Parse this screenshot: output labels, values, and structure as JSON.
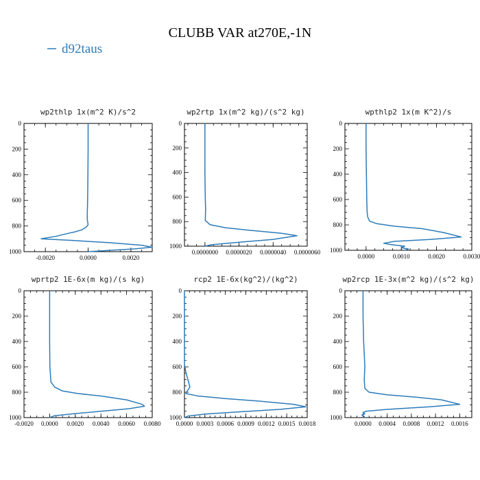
{
  "figure": {
    "title": "CLUBB VAR at270E,-1N",
    "legend": {
      "label": "d92taus",
      "color": "#2b7bb9"
    },
    "line_color": "#2b7bb9"
  },
  "chart_data": [
    {
      "type": "line",
      "title": "wp2thlp  1x(m^2 K)/s^2",
      "xlim": [
        -0.003,
        0.003
      ],
      "ylim": [
        1000,
        0
      ],
      "xticks": [
        -0.002,
        0.0,
        0.002
      ],
      "xtick_labels": [
        "-0.0020",
        "0.0000",
        "0.0020"
      ],
      "yticks": [
        0,
        200,
        400,
        600,
        800,
        1000
      ],
      "ytick_labels": [
        "0",
        "200",
        "400",
        "600",
        "800",
        "1000"
      ],
      "series": [
        {
          "x": [
            0,
            0,
            -1e-05,
            -2e-05,
            -3e-05,
            -4e-05,
            -4e-05,
            0,
            -0.0001,
            -0.0003,
            -0.0006,
            -0.001,
            -0.0015,
            -0.0022,
            -0.0008,
            0.001,
            0.0025,
            0.003,
            0.0022,
            0.001,
            0.0
          ],
          "y": [
            0,
            200,
            400,
            560,
            650,
            700,
            750,
            790,
            810,
            830,
            845,
            860,
            880,
            900,
            912,
            930,
            950,
            965,
            978,
            990,
            1000
          ]
        }
      ]
    },
    {
      "type": "line",
      "title": "wp2rtp  1x(m^2 kg)/(s^2 kg)",
      "xlim": [
        -1.2e-06,
        6e-06
      ],
      "ylim": [
        1000,
        0
      ],
      "xticks": [
        0,
        2e-06,
        4e-06,
        6e-06
      ],
      "xtick_labels": [
        "0.0000000",
        "0.0000020",
        "0.0000040",
        "0.0000060"
      ],
      "yticks": [
        0,
        200,
        400,
        600,
        800,
        1000
      ],
      "ytick_labels": [
        "0",
        "200",
        "400",
        "600",
        "800",
        "1000"
      ],
      "series": [
        {
          "x": [
            0,
            0,
            0,
            2e-08,
            4e-08,
            2e-08,
            3e-07,
            1.2e-06,
            2.6e-06,
            4.5e-06,
            5.4e-06,
            4e-06,
            2e-06,
            4e-07,
            0
          ],
          "y": [
            0,
            200,
            400,
            600,
            700,
            790,
            825,
            850,
            870,
            895,
            915,
            945,
            968,
            988,
            1000
          ]
        }
      ]
    },
    {
      "type": "line",
      "title": "wpthlp2  1x(m K^2)/s",
      "xlim": [
        -0.0006,
        0.003
      ],
      "ylim": [
        1000,
        0
      ],
      "xticks": [
        0,
        0.001,
        0.002,
        0.003
      ],
      "xtick_labels": [
        "0.0000",
        "0.0010",
        "0.0020",
        "0.0030"
      ],
      "yticks": [
        0,
        200,
        400,
        600,
        800,
        1000
      ],
      "ytick_labels": [
        "0",
        "200",
        "400",
        "600",
        "800",
        "1000"
      ],
      "series": [
        {
          "x": [
            0,
            0,
            1e-05,
            2e-05,
            3e-05,
            5e-05,
            0.0001,
            0.0003,
            0.0008,
            0.0016,
            0.0022,
            0.0027,
            0.0018,
            0.0008,
            0.0005,
            0.0007,
            0.0011,
            0.001,
            0.0012,
            0.0011
          ],
          "y": [
            0,
            200,
            400,
            600,
            700,
            740,
            770,
            790,
            810,
            830,
            860,
            895,
            915,
            930,
            945,
            955,
            968,
            980,
            990,
            1000
          ]
        }
      ]
    },
    {
      "type": "line",
      "title": "wprtp2  1E-6x(m kg)/(s kg)",
      "xlim": [
        -0.002,
        0.008
      ],
      "ylim": [
        1000,
        0
      ],
      "xticks": [
        -0.002,
        0.0,
        0.002,
        0.004,
        0.006,
        0.008
      ],
      "xtick_labels": [
        "-0.0020",
        "0.0000",
        "0.0020",
        "0.0040",
        "0.0060",
        "0.0080"
      ],
      "yticks": [
        0,
        200,
        400,
        600,
        800,
        1000
      ],
      "ytick_labels": [
        "0",
        "200",
        "400",
        "600",
        "800",
        "1000"
      ],
      "series": [
        {
          "x": [
            0,
            0,
            0,
            2e-05,
            0.0001,
            0.0004,
            0.001,
            0.0022,
            0.004,
            0.006,
            0.0072,
            0.0074,
            0.0062,
            0.004,
            0.0018,
            0.0004,
            0
          ],
          "y": [
            0,
            200,
            400,
            600,
            720,
            760,
            790,
            810,
            830,
            860,
            895,
            910,
            930,
            950,
            970,
            985,
            1000
          ]
        }
      ]
    },
    {
      "type": "line",
      "title": "rcp2  1E-6x(kg^2)/(kg^2)",
      "xlim": [
        0,
        0.0018
      ],
      "ylim": [
        1000,
        0
      ],
      "xticks": [
        0,
        0.0003,
        0.0006,
        0.0009,
        0.0012,
        0.0015,
        0.0018
      ],
      "xtick_labels": [
        "0.0000",
        "0.0003",
        "0.0006",
        "0.0009",
        "0.0012",
        "0.0015",
        "0.0018"
      ],
      "yticks": [
        0,
        200,
        400,
        600,
        800,
        1000
      ],
      "ytick_labels": [
        "0",
        "200",
        "400",
        "600",
        "800",
        "1000"
      ],
      "series": [
        {
          "x": [
            0,
            0,
            0,
            2e-05,
            5e-05,
            8e-05,
            4e-05,
            2e-05,
            0.0002,
            0.0006,
            0.0011,
            0.0016,
            0.00178,
            0.0014,
            0.0008,
            0.0003,
            5e-05,
            0
          ],
          "y": [
            0,
            300,
            580,
            640,
            700,
            760,
            790,
            810,
            830,
            850,
            870,
            895,
            915,
            935,
            955,
            972,
            988,
            1000
          ]
        }
      ]
    },
    {
      "type": "line",
      "title": "wp2rcp  1E-3x(m^2 kg)/(s^2 kg)",
      "xlim": [
        -0.0003,
        0.0018
      ],
      "ylim": [
        1000,
        0
      ],
      "xticks": [
        0,
        0.0004,
        0.0008,
        0.0012,
        0.0016
      ],
      "xtick_labels": [
        "0.0000",
        "0.0004",
        "0.0008",
        "0.0012",
        "0.0016"
      ],
      "yticks": [
        0,
        200,
        400,
        600,
        800,
        1000
      ],
      "ytick_labels": [
        "0",
        "200",
        "400",
        "600",
        "800",
        "1000"
      ],
      "series": [
        {
          "x": [
            0,
            0,
            1e-05,
            2e-05,
            3e-05,
            2e-05,
            3e-05,
            0.0001,
            0.0004,
            0.0009,
            0.0013,
            0.0016,
            0.0011,
            0.0004,
            5e-05,
            0,
            3e-05,
            -2e-05,
            2e-05,
            0
          ],
          "y": [
            0,
            200,
            400,
            500,
            600,
            700,
            770,
            800,
            820,
            840,
            860,
            895,
            915,
            935,
            950,
            960,
            970,
            980,
            990,
            1000
          ]
        }
      ]
    }
  ]
}
